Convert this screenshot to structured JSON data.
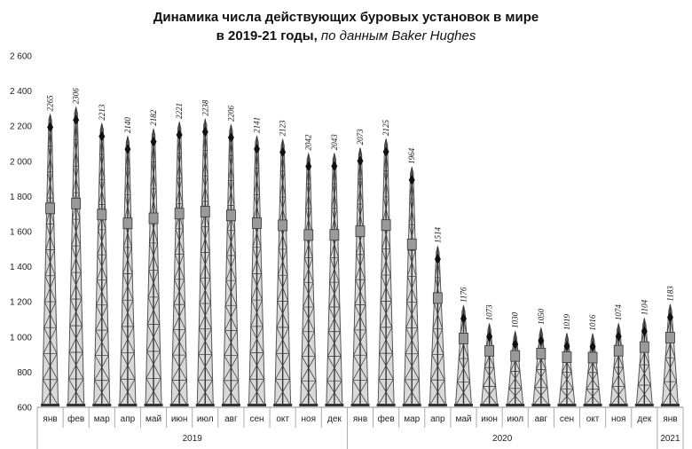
{
  "chart_data": {
    "type": "bar",
    "title_main": "Динамика числа действующих буровых установок в мире",
    "title_line2": "в 2019-21 годы,",
    "title_source": "по данным Baker Hughes",
    "xlabel": "",
    "ylabel": "",
    "ylim": [
      600,
      2600
    ],
    "yticks": [
      "600",
      "800",
      "1 000",
      "1 200",
      "1 400",
      "1 600",
      "1 800",
      "2 000",
      "2 200",
      "2 400",
      "2 600"
    ],
    "ytick_values": [
      600,
      800,
      1000,
      1200,
      1400,
      1600,
      1800,
      2000,
      2200,
      2400,
      2600
    ],
    "grid": false,
    "legend": "none",
    "categories": [
      "янв",
      "фев",
      "мар",
      "апр",
      "май",
      "июн",
      "июл",
      "авг",
      "сен",
      "окт",
      "ноя",
      "дек",
      "янв",
      "фев",
      "мар",
      "апр",
      "май",
      "июн",
      "июл",
      "авг",
      "сен",
      "окт",
      "ноя",
      "дек",
      "янв"
    ],
    "values": [
      2265,
      2306,
      2213,
      2140,
      2182,
      2221,
      2238,
      2206,
      2141,
      2123,
      2042,
      2043,
      2073,
      2125,
      1964,
      1514,
      1176,
      1073,
      1030,
      1050,
      1019,
      1016,
      1074,
      1104,
      1183
    ],
    "years": [
      {
        "label": "2019",
        "count": 12
      },
      {
        "label": "2020",
        "count": 12
      },
      {
        "label": "2021",
        "count": 1
      }
    ],
    "bar_color": "#555555"
  }
}
